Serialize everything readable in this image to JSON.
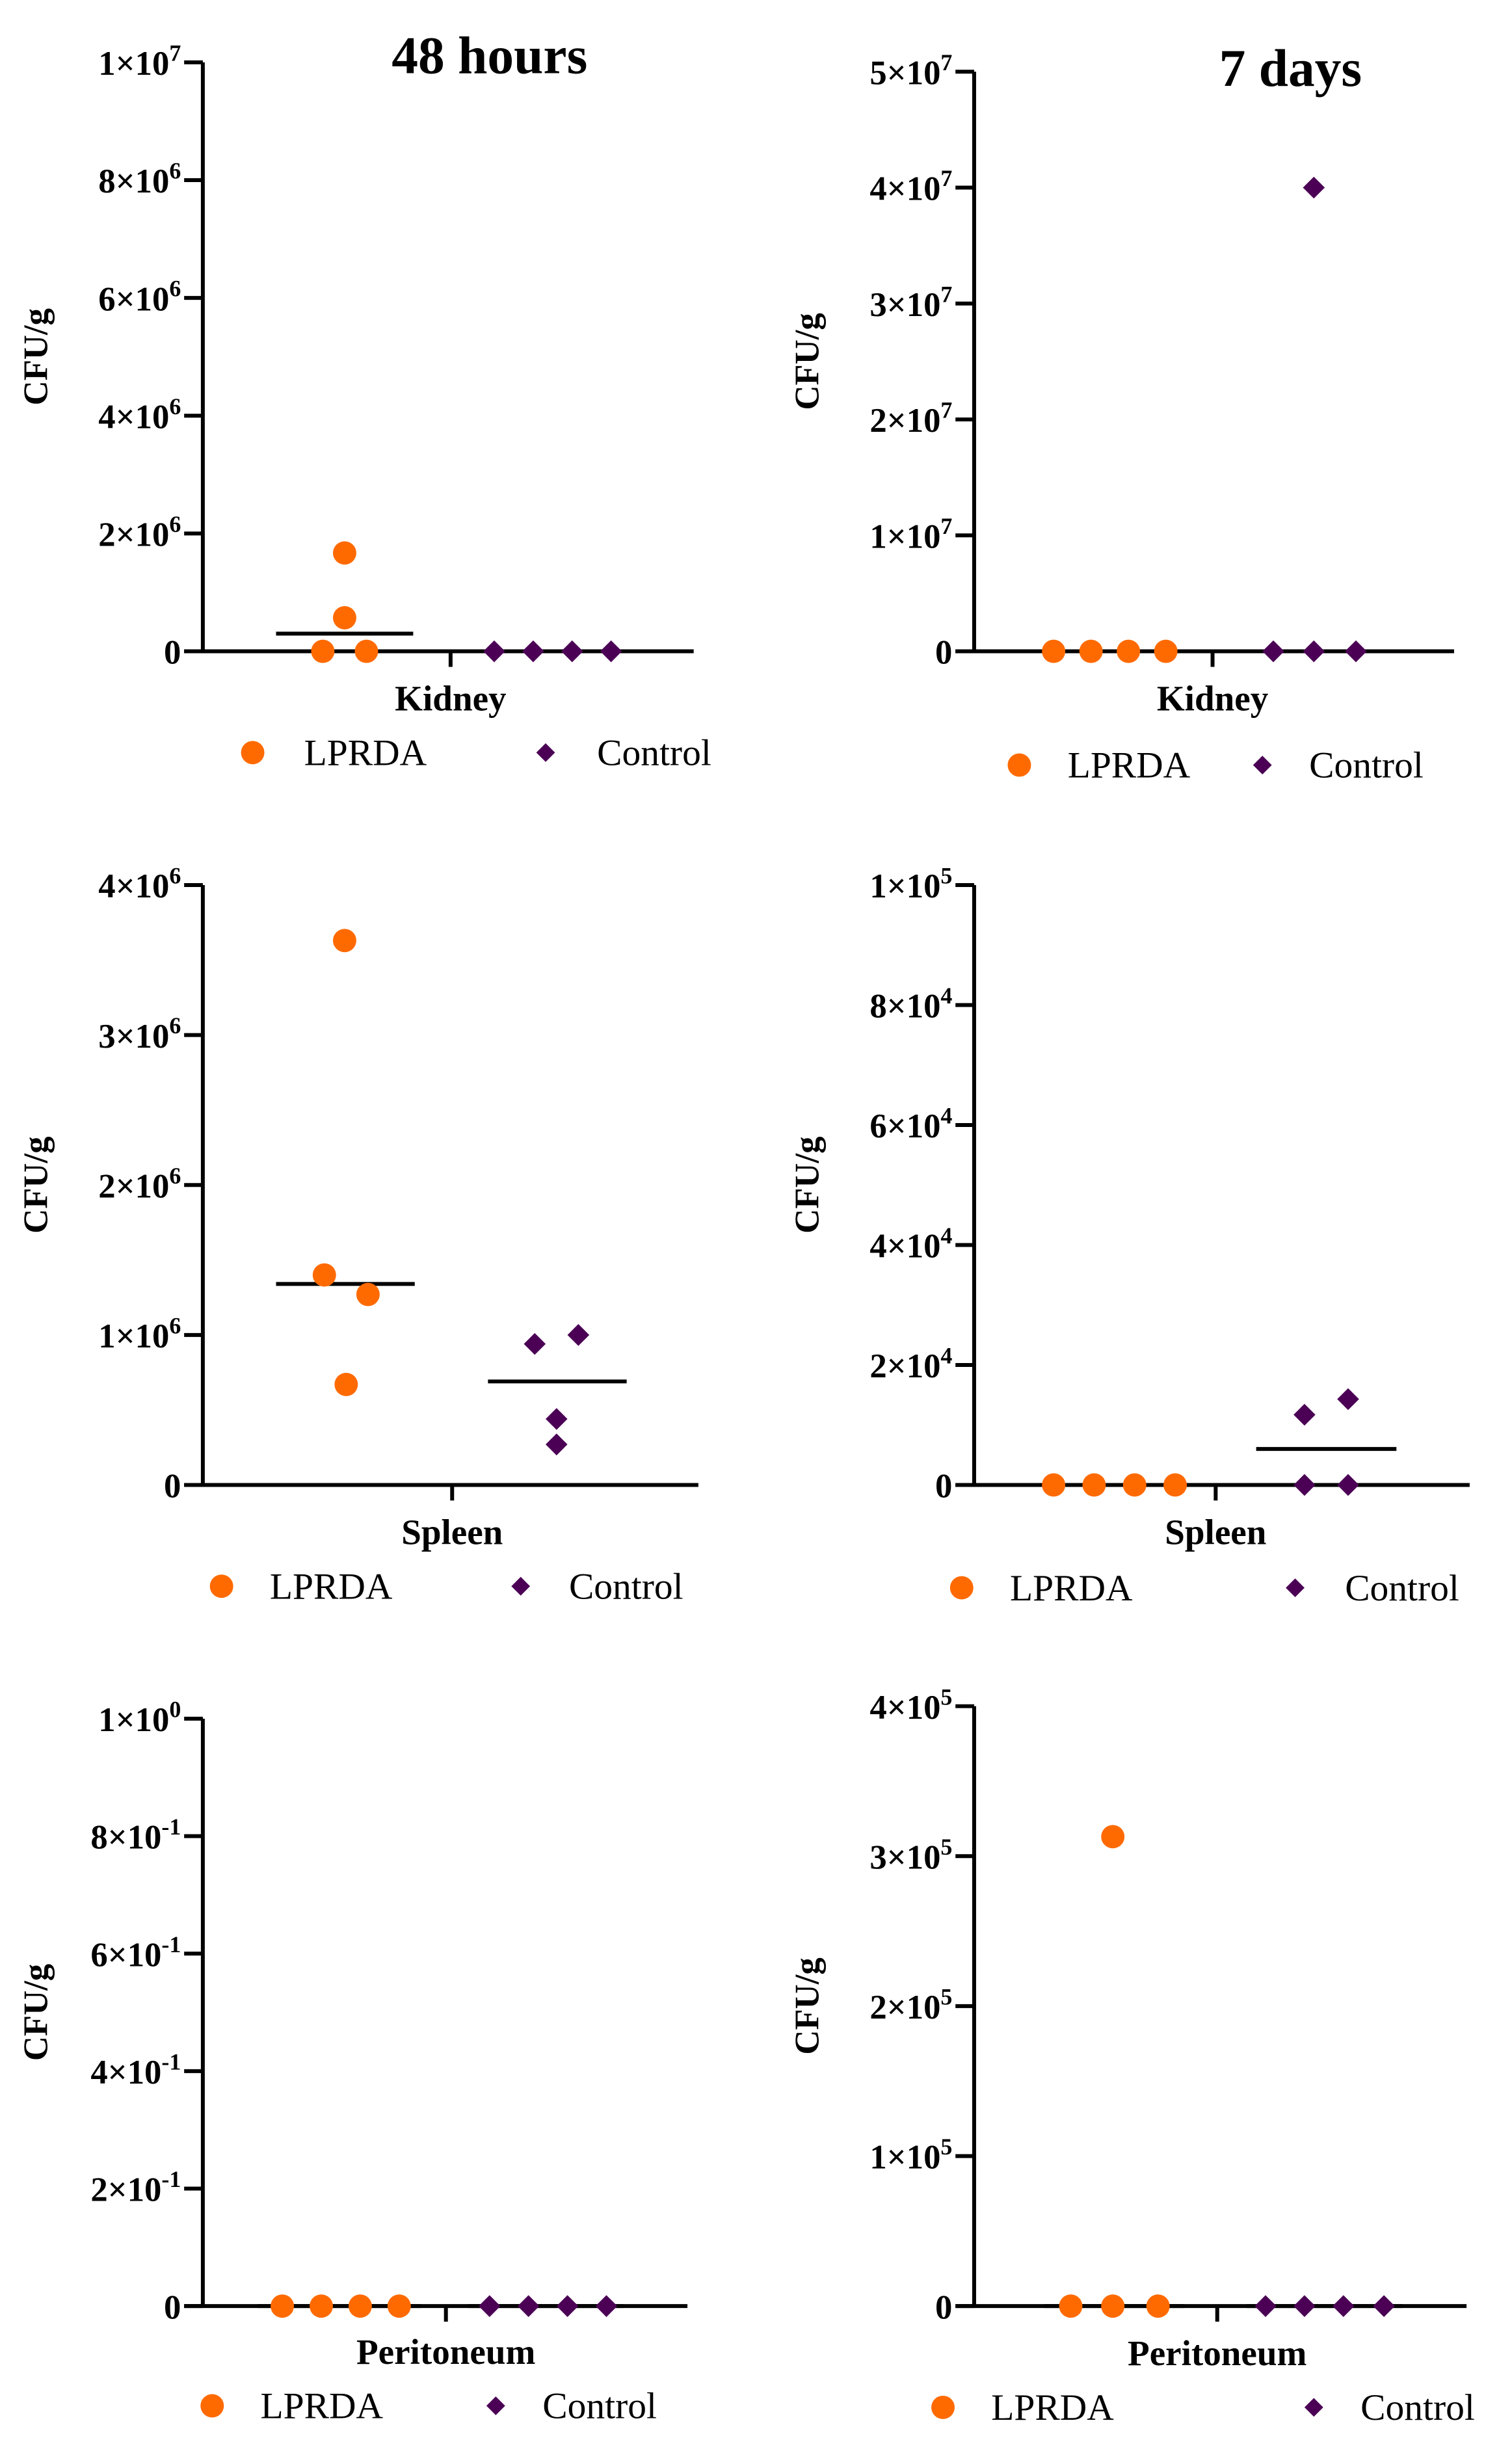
{
  "colors": {
    "LPRDA": "#ff6a00",
    "Control": "#4b0055",
    "axis": "#000000"
  },
  "chart_data": [
    {
      "type": "scatter",
      "title": "48 hours",
      "xlabel": "Kidney",
      "ylabel": "CFU/g",
      "ylim": [
        0,
        10000000
      ],
      "yticks": [
        {
          "v": 0,
          "base": "0",
          "exp": ""
        },
        {
          "v": 2000000,
          "base": "2×10",
          "exp": "6"
        },
        {
          "v": 4000000,
          "base": "4×10",
          "exp": "6"
        },
        {
          "v": 6000000,
          "base": "6×10",
          "exp": "6"
        },
        {
          "v": 8000000,
          "base": "8×10",
          "exp": "6"
        },
        {
          "v": 10000000,
          "base": "1×10",
          "exp": "7"
        }
      ],
      "series": [
        {
          "name": "LPRDA",
          "marker": "circle",
          "values": [
            0,
            1670000,
            570000,
            0
          ],
          "median": 300000
        },
        {
          "name": "Control",
          "marker": "diamond",
          "values": [
            0,
            0,
            0,
            0
          ],
          "median": 0
        }
      ]
    },
    {
      "type": "scatter",
      "title": "7 days",
      "xlabel": "Kidney",
      "ylabel": "CFU/g",
      "ylim": [
        0,
        50000000
      ],
      "yticks": [
        {
          "v": 0,
          "base": "0",
          "exp": ""
        },
        {
          "v": 10000000,
          "base": "1×10",
          "exp": "7"
        },
        {
          "v": 20000000,
          "base": "2×10",
          "exp": "7"
        },
        {
          "v": 30000000,
          "base": "3×10",
          "exp": "7"
        },
        {
          "v": 40000000,
          "base": "4×10",
          "exp": "7"
        },
        {
          "v": 50000000,
          "base": "5×10",
          "exp": "7"
        }
      ],
      "series": [
        {
          "name": "LPRDA",
          "marker": "circle",
          "values": [
            0,
            0,
            0,
            0
          ],
          "median": 0
        },
        {
          "name": "Control",
          "marker": "diamond",
          "values": [
            0,
            40000000,
            0,
            0
          ],
          "median": 0
        }
      ]
    },
    {
      "type": "scatter",
      "title": "",
      "xlabel": "Spleen",
      "ylabel": "CFU/g",
      "ylim": [
        0,
        4000000
      ],
      "yticks": [
        {
          "v": 0,
          "base": "0",
          "exp": ""
        },
        {
          "v": 1000000,
          "base": "1×10",
          "exp": "6"
        },
        {
          "v": 2000000,
          "base": "2×10",
          "exp": "6"
        },
        {
          "v": 3000000,
          "base": "3×10",
          "exp": "6"
        },
        {
          "v": 4000000,
          "base": "4×10",
          "exp": "6"
        }
      ],
      "series": [
        {
          "name": "LPRDA",
          "marker": "circle",
          "values": [
            3630000,
            1400000,
            1270000,
            670000
          ],
          "median": 1340000
        },
        {
          "name": "Control",
          "marker": "diamond",
          "values": [
            940000,
            1000000,
            440000,
            270000
          ],
          "median": 690000
        }
      ]
    },
    {
      "type": "scatter",
      "title": "",
      "xlabel": "Spleen",
      "ylabel": "CFU/g",
      "ylim": [
        0,
        100000
      ],
      "yticks": [
        {
          "v": 0,
          "base": "0",
          "exp": ""
        },
        {
          "v": 20000,
          "base": "2×10",
          "exp": "4"
        },
        {
          "v": 40000,
          "base": "4×10",
          "exp": "4"
        },
        {
          "v": 60000,
          "base": "6×10",
          "exp": "4"
        },
        {
          "v": 80000,
          "base": "8×10",
          "exp": "4"
        },
        {
          "v": 100000,
          "base": "1×10",
          "exp": "5"
        }
      ],
      "series": [
        {
          "name": "LPRDA",
          "marker": "circle",
          "values": [
            0,
            0,
            0,
            0
          ],
          "median": 0
        },
        {
          "name": "Control",
          "marker": "diamond",
          "values": [
            11700,
            14300,
            0,
            0
          ],
          "median": 6000
        }
      ]
    },
    {
      "type": "scatter",
      "title": "",
      "xlabel": "Peritoneum",
      "ylabel": "CFU/g",
      "ylim": [
        0,
        1
      ],
      "yticks": [
        {
          "v": 0,
          "base": "0",
          "exp": ""
        },
        {
          "v": 0.2,
          "base": "2×10",
          "exp": "-1"
        },
        {
          "v": 0.4,
          "base": "4×10",
          "exp": "-1"
        },
        {
          "v": 0.6,
          "base": "6×10",
          "exp": "-1"
        },
        {
          "v": 0.8,
          "base": "8×10",
          "exp": "-1"
        },
        {
          "v": 1,
          "base": "1×10",
          "exp": "0"
        }
      ],
      "series": [
        {
          "name": "LPRDA",
          "marker": "circle",
          "values": [
            0,
            0,
            0,
            0
          ],
          "median": 0
        },
        {
          "name": "Control",
          "marker": "diamond",
          "values": [
            0,
            0,
            0,
            0
          ],
          "median": 0
        }
      ]
    },
    {
      "type": "scatter",
      "title": "",
      "xlabel": "Peritoneum",
      "ylabel": "CFU/g",
      "ylim": [
        0,
        400000
      ],
      "yticks": [
        {
          "v": 0,
          "base": "0",
          "exp": ""
        },
        {
          "v": 100000,
          "base": "1×10",
          "exp": "5"
        },
        {
          "v": 200000,
          "base": "2×10",
          "exp": "5"
        },
        {
          "v": 300000,
          "base": "3×10",
          "exp": "5"
        },
        {
          "v": 400000,
          "base": "4×10",
          "exp": "5"
        }
      ],
      "series": [
        {
          "name": "LPRDA",
          "marker": "circle",
          "values": [
            0,
            313000,
            0,
            0
          ],
          "median": 0
        },
        {
          "name": "Control",
          "marker": "diamond",
          "values": [
            0,
            0,
            0,
            0
          ],
          "median": 0
        }
      ]
    }
  ]
}
